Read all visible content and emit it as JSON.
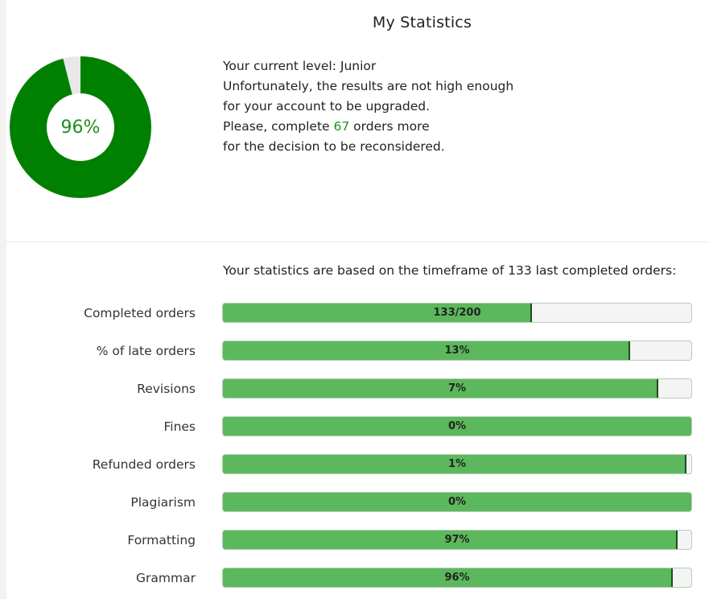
{
  "header": {
    "title": "My Statistics"
  },
  "score": {
    "percent_label": "96%",
    "percent": 0.96
  },
  "info": {
    "level_prefix": "Your current level: ",
    "level": "Junior",
    "line2": "Unfortunately, the results are not high enough",
    "line3": "for your account to be upgraded.",
    "line4_prefix": "Please, complete ",
    "orders_needed": "67",
    "line4_suffix": " orders more",
    "line5": "for the decision to be reconsidered."
  },
  "timeframe_text": "Your statistics are based on the timeframe of 133 last completed orders:",
  "colors": {
    "donut_green": "#008000",
    "donut_gap": "#e8e8e8",
    "bar_green": "#5cb85c",
    "text_green": "#1e8f1e"
  },
  "stats": [
    {
      "label": "Completed orders",
      "value_label": "133/200",
      "fill": 0.66
    },
    {
      "label": "% of late orders",
      "value_label": "13%",
      "fill": 0.87
    },
    {
      "label": "Revisions",
      "value_label": "7%",
      "fill": 0.93
    },
    {
      "label": "Fines",
      "value_label": "0%",
      "fill": 1.0
    },
    {
      "label": "Refunded orders",
      "value_label": "1%",
      "fill": 0.99
    },
    {
      "label": "Plagiarism",
      "value_label": "0%",
      "fill": 1.0
    },
    {
      "label": "Formatting",
      "value_label": "97%",
      "fill": 0.97
    },
    {
      "label": "Grammar",
      "value_label": "96%",
      "fill": 0.96
    }
  ]
}
